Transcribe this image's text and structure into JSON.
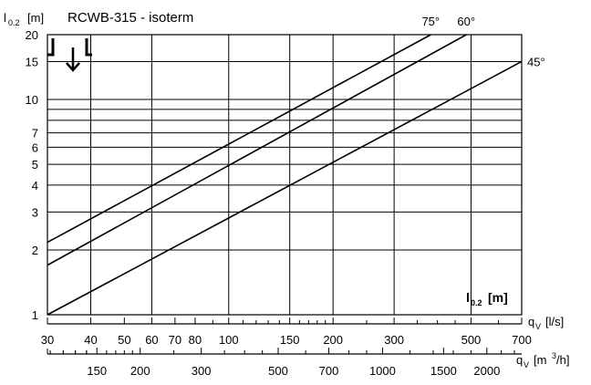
{
  "chart_data": {
    "type": "line",
    "title": "RCWB-315 - isoterm",
    "y_axis": {
      "label_main": "l",
      "label_sub": "0.2",
      "label_unit": "[m]",
      "scale": "log",
      "ylim": [
        1,
        20
      ],
      "ticks": [
        1,
        2,
        3,
        4,
        5,
        6,
        7,
        10,
        15,
        20
      ],
      "gridlines": [
        1,
        2,
        3,
        4,
        5,
        6,
        7,
        8,
        9,
        10,
        15,
        20
      ]
    },
    "x_axis": {
      "label_main": "q",
      "label_sub": "V",
      "label_unit": "[l/s]",
      "scale": "log",
      "xlim": [
        30,
        700
      ],
      "ticks": [
        30,
        40,
        50,
        60,
        70,
        80,
        100,
        150,
        200,
        300,
        500,
        700
      ],
      "gridlines": [
        30,
        40,
        60,
        100,
        150,
        200,
        300,
        500,
        700
      ],
      "minor_ticks": [
        90,
        110,
        120,
        130,
        140,
        160,
        170,
        180,
        190,
        250,
        350,
        400,
        450,
        600
      ]
    },
    "x_axis_secondary": {
      "label_main": "q",
      "label_sub": "V",
      "label_unit": "[m",
      "label_sup": "3",
      "label_unit_end": "/h]",
      "scale": "log",
      "ticks": [
        150,
        200,
        300,
        500,
        700,
        1000,
        1500,
        2000
      ],
      "minor_ticks": [
        110,
        120,
        130,
        140,
        160,
        170,
        180,
        190,
        250,
        350,
        400,
        450,
        600,
        800,
        900,
        1200,
        1400,
        1600,
        1800,
        2200,
        2400
      ]
    },
    "series": [
      {
        "name": "75°",
        "x": [
          30,
          383
        ],
        "y": [
          2.17,
          20
        ]
      },
      {
        "name": "60°",
        "x": [
          30,
          485
        ],
        "y": [
          1.7,
          20
        ]
      },
      {
        "name": "45°",
        "x": [
          30,
          700
        ],
        "y": [
          1.0,
          15.0
        ]
      }
    ],
    "annotation": {
      "main": "l",
      "sub": "0.2",
      "unit": "[m]"
    },
    "legend_icon": "ceiling-diffuser-downward-airflow-icon"
  }
}
